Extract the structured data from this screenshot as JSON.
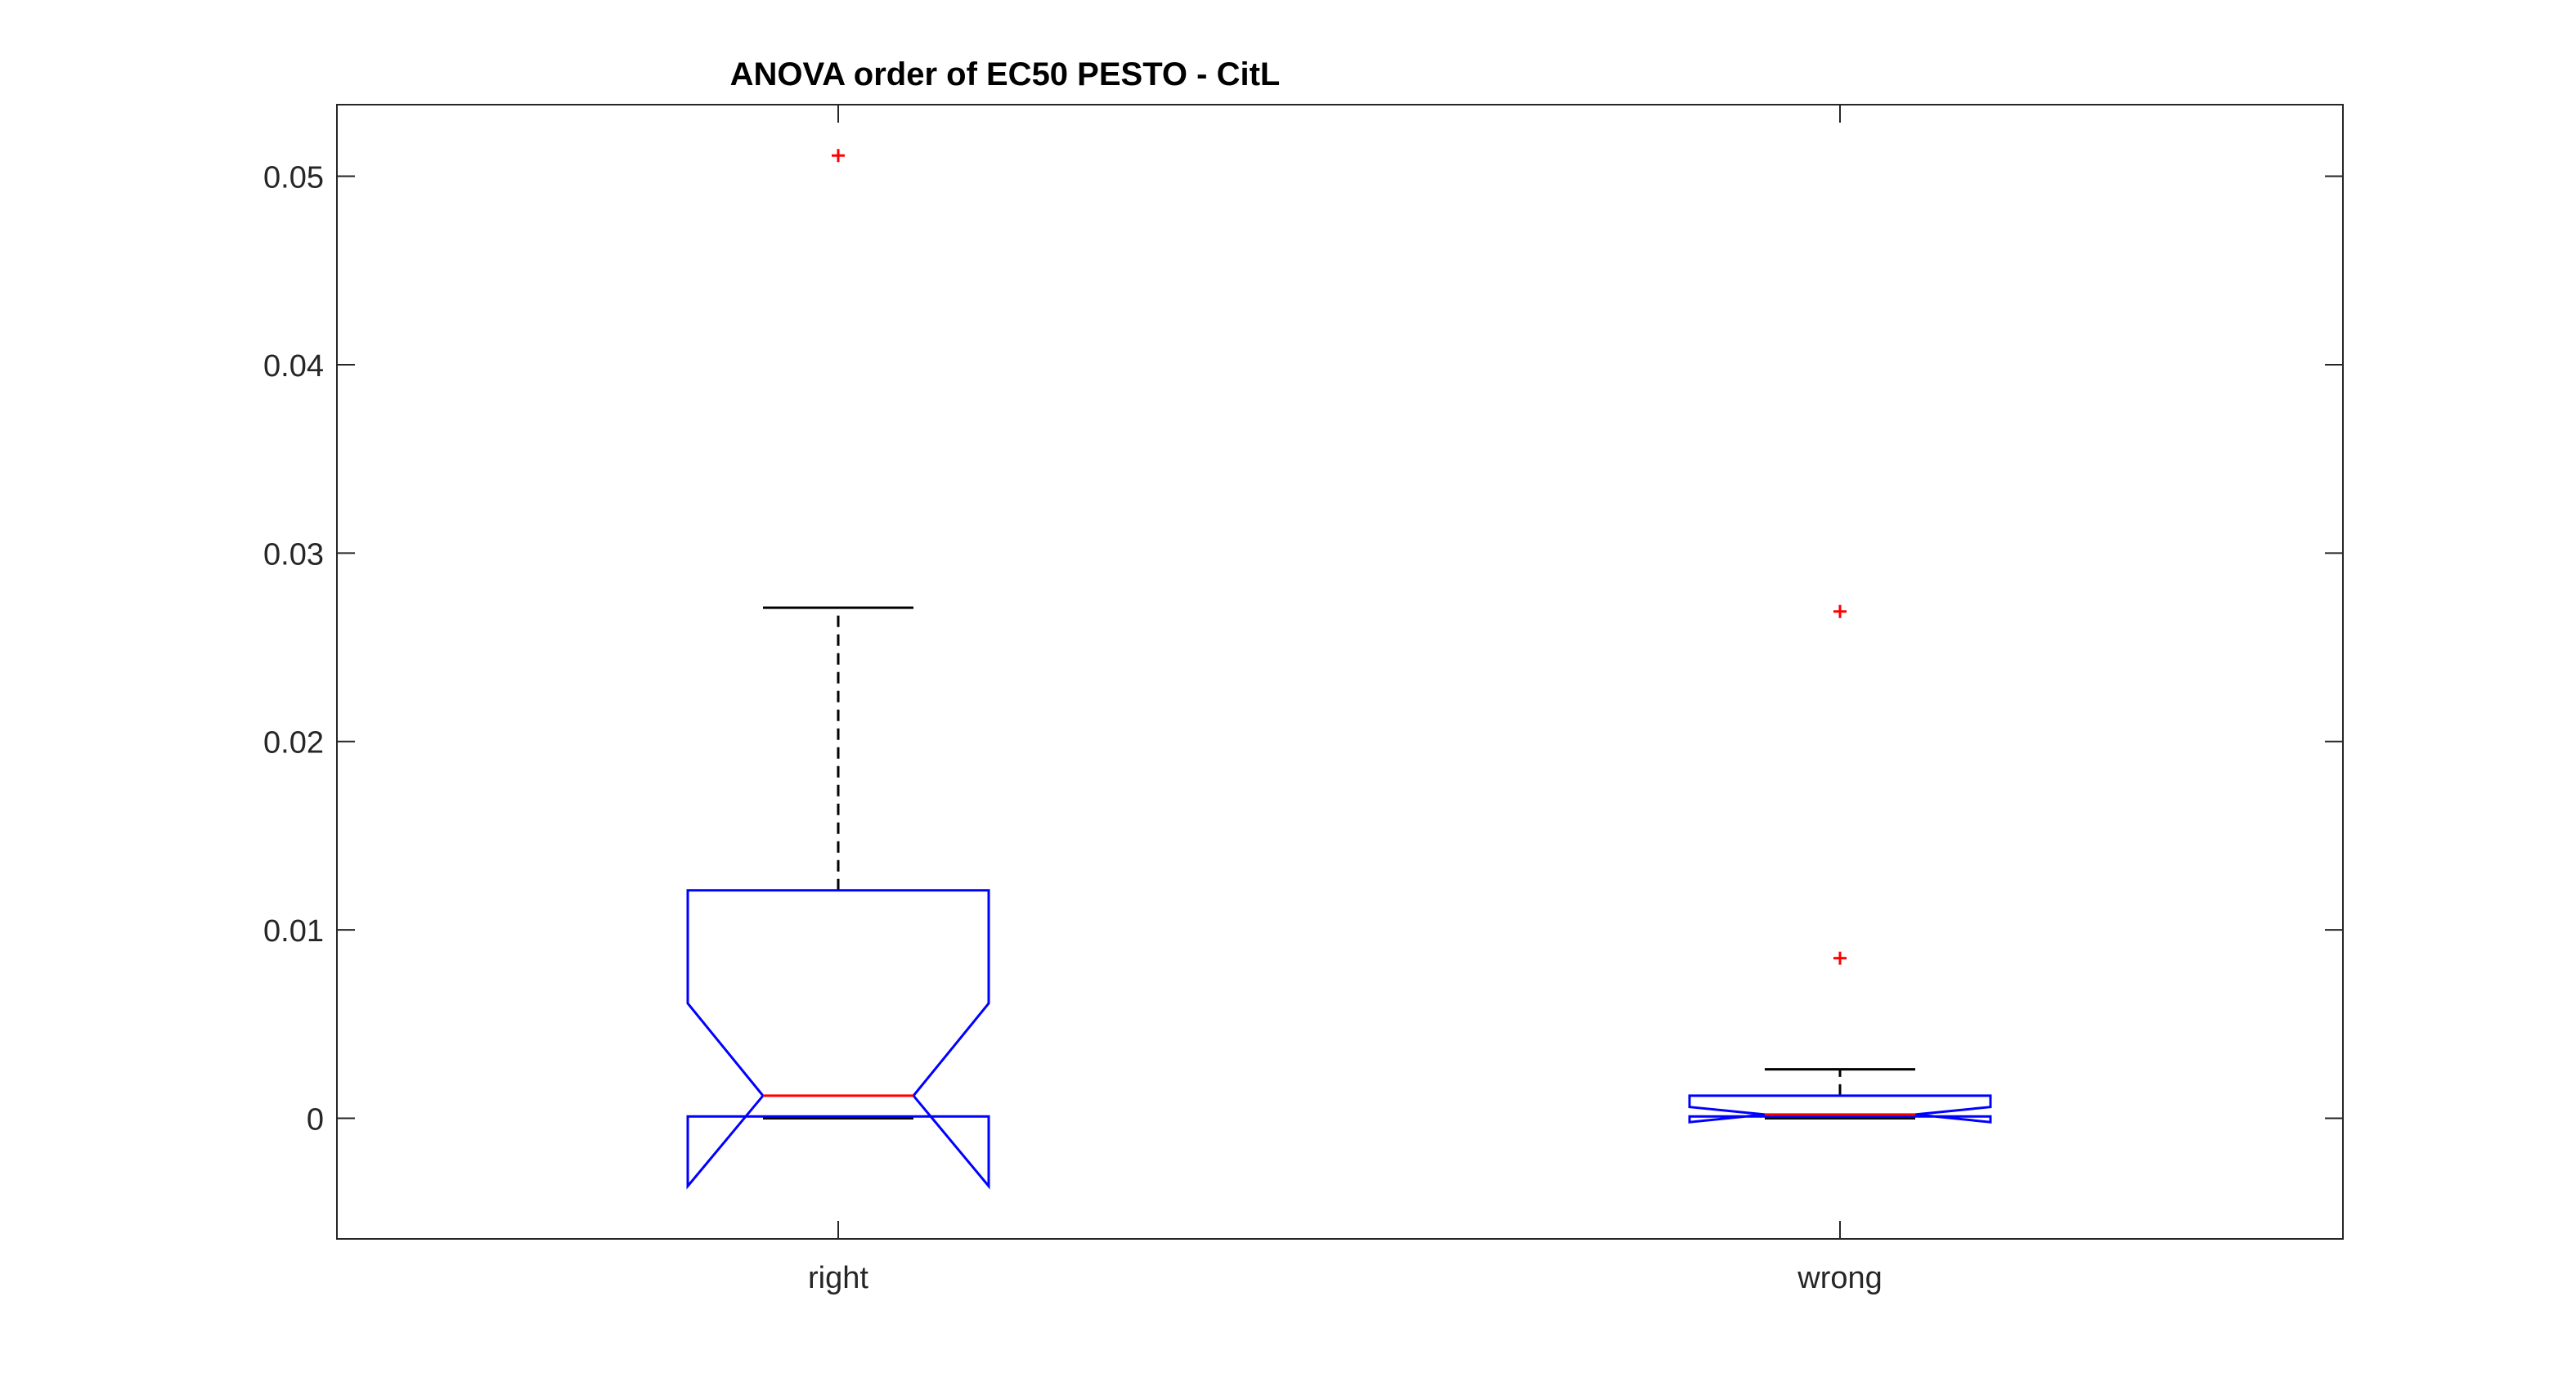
{
  "chart_data": {
    "type": "box",
    "title": "ANOVA order of EC50 PESTO - CitL",
    "xlabel": "",
    "ylabel": "",
    "ylim": [
      -0.0064,
      0.0538
    ],
    "yticks": [
      0,
      0.01,
      0.02,
      0.03,
      0.04,
      0.05
    ],
    "ytick_labels": [
      "0",
      "0.01",
      "0.02",
      "0.03",
      "0.04",
      "0.05"
    ],
    "categories": [
      "right",
      "wrong"
    ],
    "notched": true,
    "boxes": [
      {
        "category": "right",
        "q1": 0.0001,
        "median": 0.0012,
        "q3": 0.0121,
        "notch_low": -0.0036,
        "notch_high": 0.0061,
        "whisker_low": 0.0,
        "whisker_high": 0.0271,
        "outliers": [
          0.0511
        ]
      },
      {
        "category": "wrong",
        "q1": 0.0001,
        "median": 0.0002,
        "q3": 0.0012,
        "notch_low": -0.0002,
        "notch_high": 0.0006,
        "whisker_low": 0.0,
        "whisker_high": 0.0026,
        "outliers": [
          0.0085,
          0.0269
        ]
      }
    ],
    "grid": false,
    "legend": false,
    "colors": {
      "box": "#0000ff",
      "median": "#ff0000",
      "whisker": "#000000",
      "outlier": "#ff0000",
      "axes": "#262626"
    }
  }
}
